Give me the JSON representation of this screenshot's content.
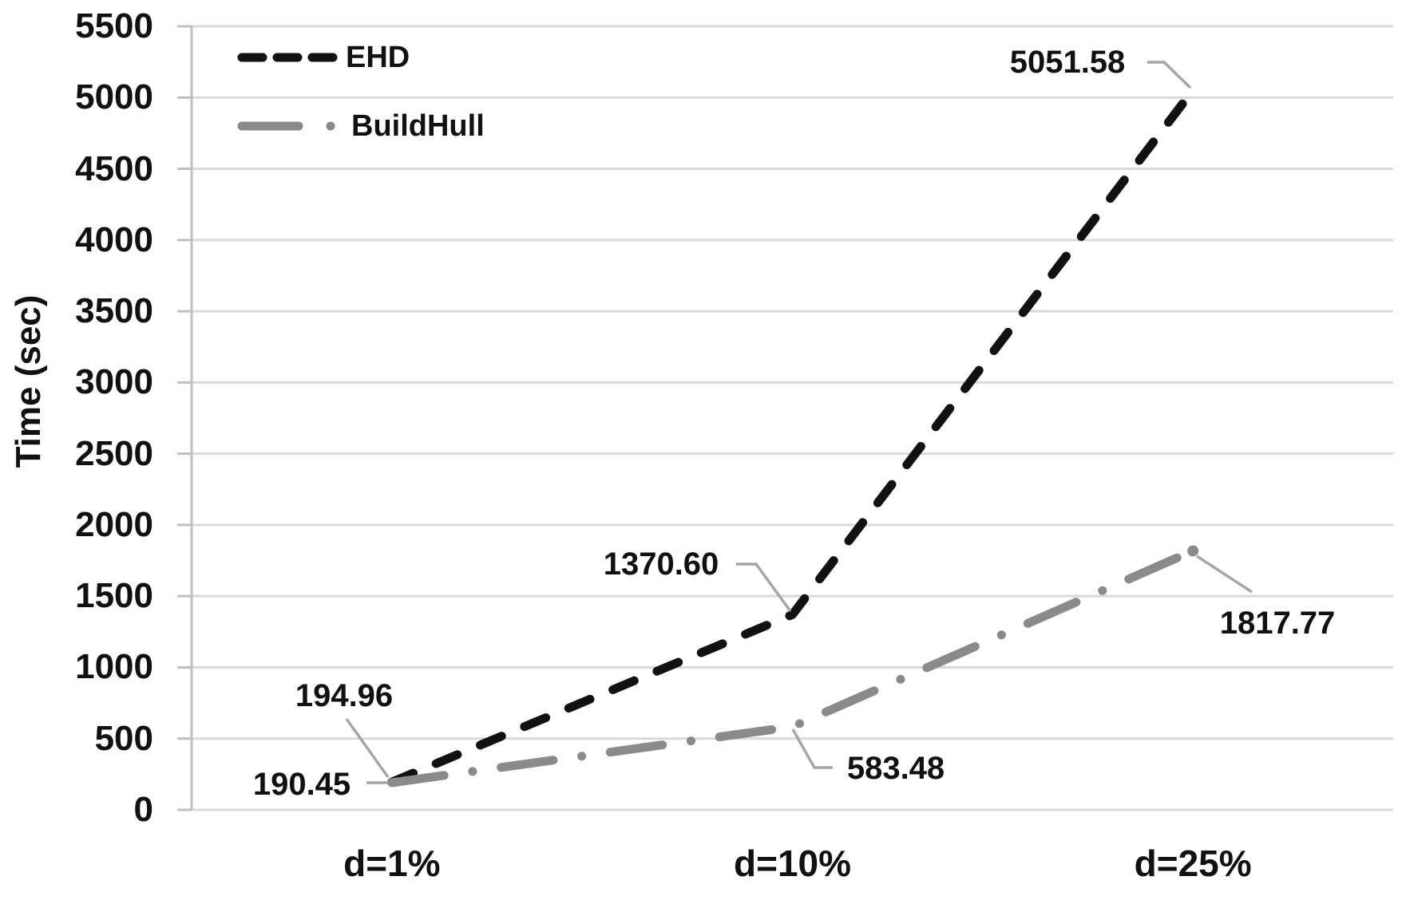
{
  "chart_data": {
    "type": "line",
    "title": "",
    "xlabel": "",
    "ylabel": "Time (sec)",
    "categories": [
      "d=1%",
      "d=10%",
      "d=25%"
    ],
    "series": [
      {
        "name": "EHD",
        "style": "dashed",
        "color": "#111111",
        "values": [
          194.96,
          1370.6,
          5051.58
        ],
        "point_labels": [
          "194.96",
          "1370.60",
          "5051.58"
        ]
      },
      {
        "name": "BuildHull",
        "style": "dash-dot",
        "color": "#8a8a8a",
        "values": [
          190.45,
          583.48,
          1817.77
        ],
        "point_labels": [
          "190.45",
          "583.48",
          "1817.77"
        ]
      }
    ],
    "ylim": [
      0,
      5500
    ],
    "ytick_step": 500,
    "ytick_labels": [
      "0",
      "500",
      "1000",
      "1500",
      "2000",
      "2500",
      "3000",
      "3500",
      "4000",
      "4500",
      "5000",
      "5500"
    ],
    "grid": true,
    "legend_position": "top-left",
    "colors": {
      "grid": "#d9d9d9",
      "axis": "#bfbfbf",
      "leader": "#a6a6a6",
      "text": "#111111",
      "background": "#ffffff"
    }
  }
}
